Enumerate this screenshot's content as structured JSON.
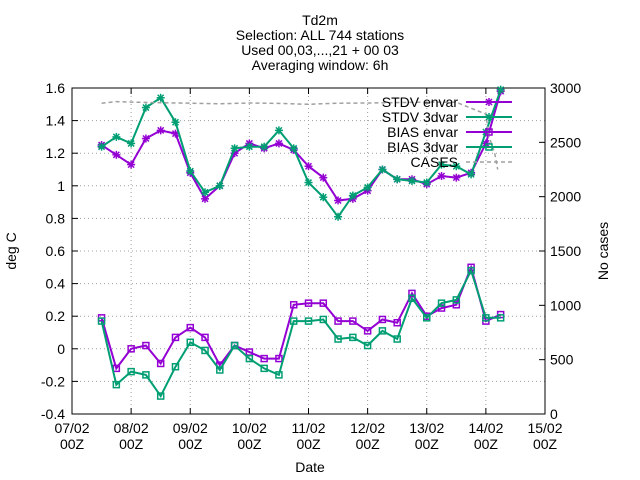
{
  "chart_data": {
    "type": "line",
    "title_lines": [
      "Td2m",
      "Selection: ALL     744 stations",
      "Used 00,03,...,21 + 00 03",
      "Averaging window:  6h"
    ],
    "xlabel": "Date",
    "ylabel": "deg C",
    "y2label": "No cases",
    "ylim": [
      -0.4,
      1.6
    ],
    "y2lim": [
      0,
      3000
    ],
    "y_ticks": [
      "-0.4",
      "-0.2",
      "0",
      "0.2",
      "0.4",
      "0.6",
      "0.8",
      "1",
      "1.2",
      "1.4",
      "1.6"
    ],
    "y2_ticks": [
      "0",
      "500",
      "1000",
      "1500",
      "2000",
      "2500",
      "3000"
    ],
    "x_ticks": [
      {
        "date": "07/02",
        "hour": "00Z"
      },
      {
        "date": "08/02",
        "hour": "00Z"
      },
      {
        "date": "09/02",
        "hour": "00Z"
      },
      {
        "date": "10/02",
        "hour": "00Z"
      },
      {
        "date": "11/02",
        "hour": "00Z"
      },
      {
        "date": "12/02",
        "hour": "00Z"
      },
      {
        "date": "13/02",
        "hour": "00Z"
      },
      {
        "date": "14/02",
        "hour": "00Z"
      },
      {
        "date": "15/02",
        "hour": "00Z"
      }
    ],
    "x_days": [
      0.5,
      0.75,
      1.0,
      1.25,
      1.5,
      1.75,
      2.0,
      2.25,
      2.5,
      2.75,
      3.0,
      3.25,
      3.5,
      3.75,
      4.0,
      4.25,
      4.5,
      4.75,
      5.0,
      5.25,
      5.5,
      5.75,
      6.0,
      6.25,
      6.5,
      6.75,
      7.0,
      7.25
    ],
    "series": [
      {
        "name": "STDV envar",
        "axis": "y",
        "color": "#9400d3",
        "marker": "x",
        "values": [
          1.25,
          1.19,
          1.13,
          1.29,
          1.34,
          1.32,
          1.08,
          0.92,
          1.0,
          1.2,
          1.26,
          1.23,
          1.26,
          1.22,
          1.12,
          1.05,
          0.91,
          0.92,
          0.97,
          1.1,
          1.04,
          1.04,
          1.01,
          1.06,
          1.05,
          1.08,
          1.26,
          1.58
        ]
      },
      {
        "name": "STDV 3dvar",
        "axis": "y",
        "color": "#009e73",
        "marker": "x",
        "values": [
          1.24,
          1.3,
          1.26,
          1.48,
          1.54,
          1.39,
          1.09,
          0.96,
          1.0,
          1.23,
          1.24,
          1.24,
          1.34,
          1.23,
          1.02,
          0.93,
          0.81,
          0.94,
          0.99,
          1.1,
          1.04,
          1.03,
          1.02,
          1.13,
          1.12,
          1.07,
          1.33,
          1.59
        ]
      },
      {
        "name": "BIAS envar",
        "axis": "y",
        "color": "#9400d3",
        "marker": "square",
        "values": [
          0.19,
          -0.12,
          0.0,
          0.02,
          -0.09,
          0.07,
          0.13,
          0.07,
          -0.1,
          0.02,
          -0.02,
          -0.06,
          -0.06,
          0.27,
          0.28,
          0.28,
          0.17,
          0.17,
          0.11,
          0.18,
          0.16,
          0.34,
          0.2,
          0.25,
          0.27,
          0.5,
          0.17,
          0.21
        ]
      },
      {
        "name": "BIAS 3dvar",
        "axis": "y",
        "color": "#009e73",
        "marker": "square",
        "values": [
          0.17,
          -0.22,
          -0.14,
          -0.16,
          -0.29,
          -0.11,
          0.04,
          -0.01,
          -0.13,
          0.02,
          -0.06,
          -0.12,
          -0.16,
          0.17,
          0.17,
          0.18,
          0.06,
          0.07,
          0.02,
          0.11,
          0.06,
          0.31,
          0.19,
          0.28,
          0.3,
          0.48,
          0.19,
          0.19
        ]
      },
      {
        "name": "CASES",
        "axis": "y2",
        "color": "#a0a0a0",
        "marker": "none",
        "x": [
          0.5,
          0.75,
          1.0,
          1.5,
          2.0,
          2.5,
          3.0,
          3.5,
          4.0,
          4.5,
          5.0,
          5.5,
          6.0,
          6.5,
          7.0,
          7.05,
          7.15,
          7.2
        ],
        "values": [
          2860,
          2875,
          2870,
          2865,
          2860,
          2855,
          2862,
          2858,
          2850,
          2860,
          2862,
          2866,
          2870,
          2868,
          2760,
          2560,
          2400,
          2250
        ]
      }
    ],
    "legend_position": "top-right",
    "grid": true
  }
}
